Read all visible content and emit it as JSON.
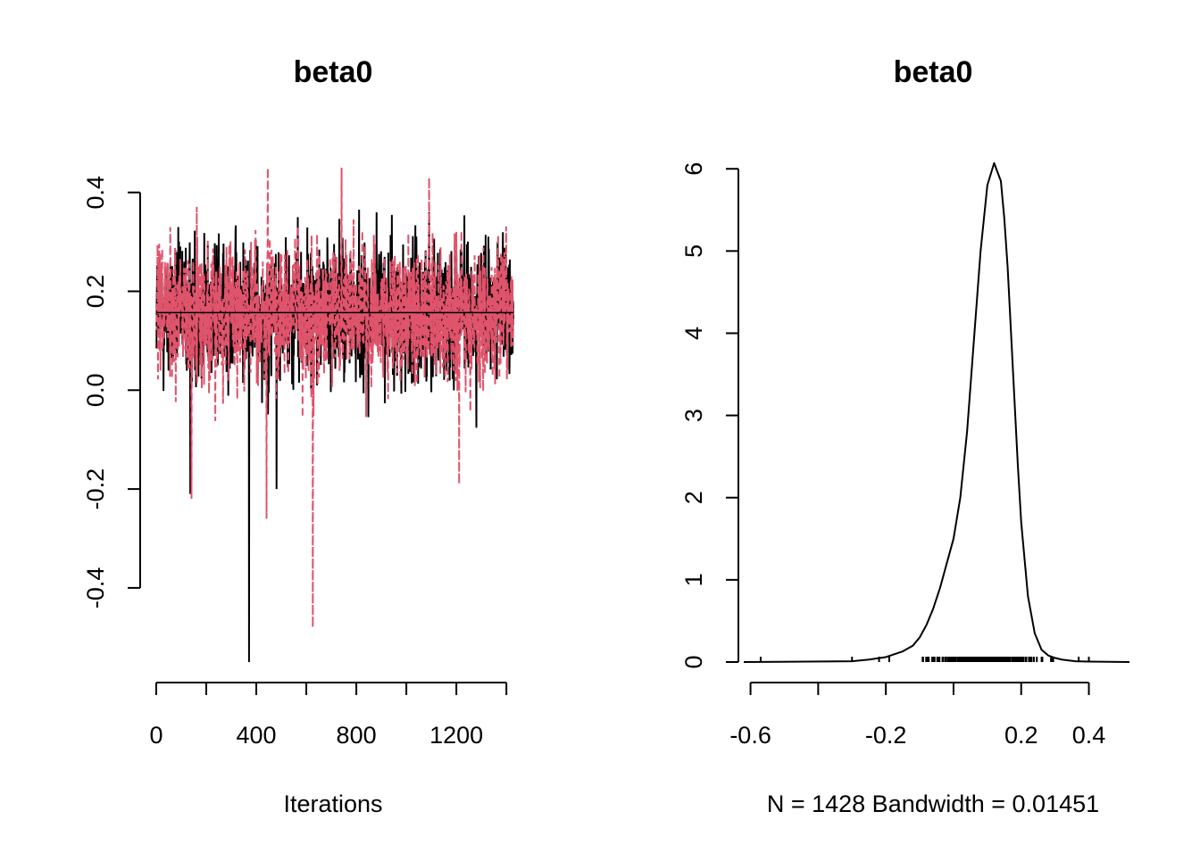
{
  "chart_data": [
    {
      "type": "line",
      "title": "beta0",
      "xlabel": "Iterations",
      "ylabel": "",
      "xlim": [
        0,
        1428
      ],
      "ylim": [
        -0.55,
        0.45
      ],
      "x_ticks": [
        0,
        200,
        400,
        600,
        800,
        1000,
        1200,
        1400
      ],
      "x_tick_labels": [
        "0",
        "",
        "400",
        "",
        "800",
        "",
        "1200",
        ""
      ],
      "y_ticks": [
        -0.4,
        -0.2,
        0.0,
        0.2,
        0.4
      ],
      "y_tick_labels": [
        "-0.4",
        "-0.2",
        "0.0",
        "0.2",
        "0.4"
      ],
      "series": [
        {
          "color": "#000000",
          "dash": "solid",
          "iterations": 1428,
          "center": 0.16,
          "spread": 0.07,
          "extremes": [
            {
              "x": 135,
              "y": -0.21
            },
            {
              "x": 370,
              "y": -0.55
            },
            {
              "x": 480,
              "y": -0.2
            },
            {
              "x": 565,
              "y": 0.35
            },
            {
              "x": 880,
              "y": 0.36
            },
            {
              "x": 1090,
              "y": 0.36
            }
          ]
        },
        {
          "color": "#DF536B",
          "dash": "dashed",
          "iterations": 1428,
          "center": 0.155,
          "spread": 0.07,
          "extremes": [
            {
              "x": 140,
              "y": -0.22
            },
            {
              "x": 440,
              "y": -0.26
            },
            {
              "x": 445,
              "y": 0.45
            },
            {
              "x": 625,
              "y": -0.48
            },
            {
              "x": 740,
              "y": 0.45
            },
            {
              "x": 1090,
              "y": 0.43
            },
            {
              "x": 1210,
              "y": -0.19
            }
          ]
        }
      ],
      "mean_line": 0.157
    },
    {
      "type": "line",
      "title": "beta0",
      "xlabel": "N = 1428   Bandwidth = 0.01451",
      "ylabel": "",
      "xlim": [
        -0.62,
        0.52
      ],
      "ylim": [
        0,
        6.1
      ],
      "x_ticks": [
        -0.6,
        -0.4,
        -0.2,
        0.0,
        0.2,
        0.4
      ],
      "x_tick_labels": [
        "-0.6",
        "",
        "-0.2",
        "",
        "0.2",
        "0.4"
      ],
      "y_ticks": [
        0,
        1,
        2,
        3,
        4,
        5,
        6
      ],
      "y_tick_labels": [
        "0",
        "1",
        "2",
        "3",
        "4",
        "5",
        "6"
      ],
      "x": [
        -0.62,
        -0.3,
        -0.25,
        -0.2,
        -0.15,
        -0.12,
        -0.1,
        -0.08,
        -0.06,
        -0.04,
        -0.02,
        0.0,
        0.02,
        0.04,
        0.06,
        0.08,
        0.1,
        0.12,
        0.14,
        0.15,
        0.16,
        0.17,
        0.18,
        0.19,
        0.2,
        0.22,
        0.24,
        0.26,
        0.28,
        0.3,
        0.32,
        0.36,
        0.4,
        0.52
      ],
      "y": [
        0,
        0.01,
        0.03,
        0.06,
        0.13,
        0.2,
        0.3,
        0.45,
        0.65,
        0.9,
        1.2,
        1.5,
        2.0,
        2.8,
        3.9,
        5.0,
        5.8,
        6.07,
        5.85,
        5.4,
        4.8,
        4.0,
        3.2,
        2.4,
        1.7,
        0.8,
        0.35,
        0.15,
        0.08,
        0.05,
        0.03,
        0.01,
        0.005,
        0
      ],
      "rug_range": [
        -0.16,
        0.33
      ]
    }
  ]
}
